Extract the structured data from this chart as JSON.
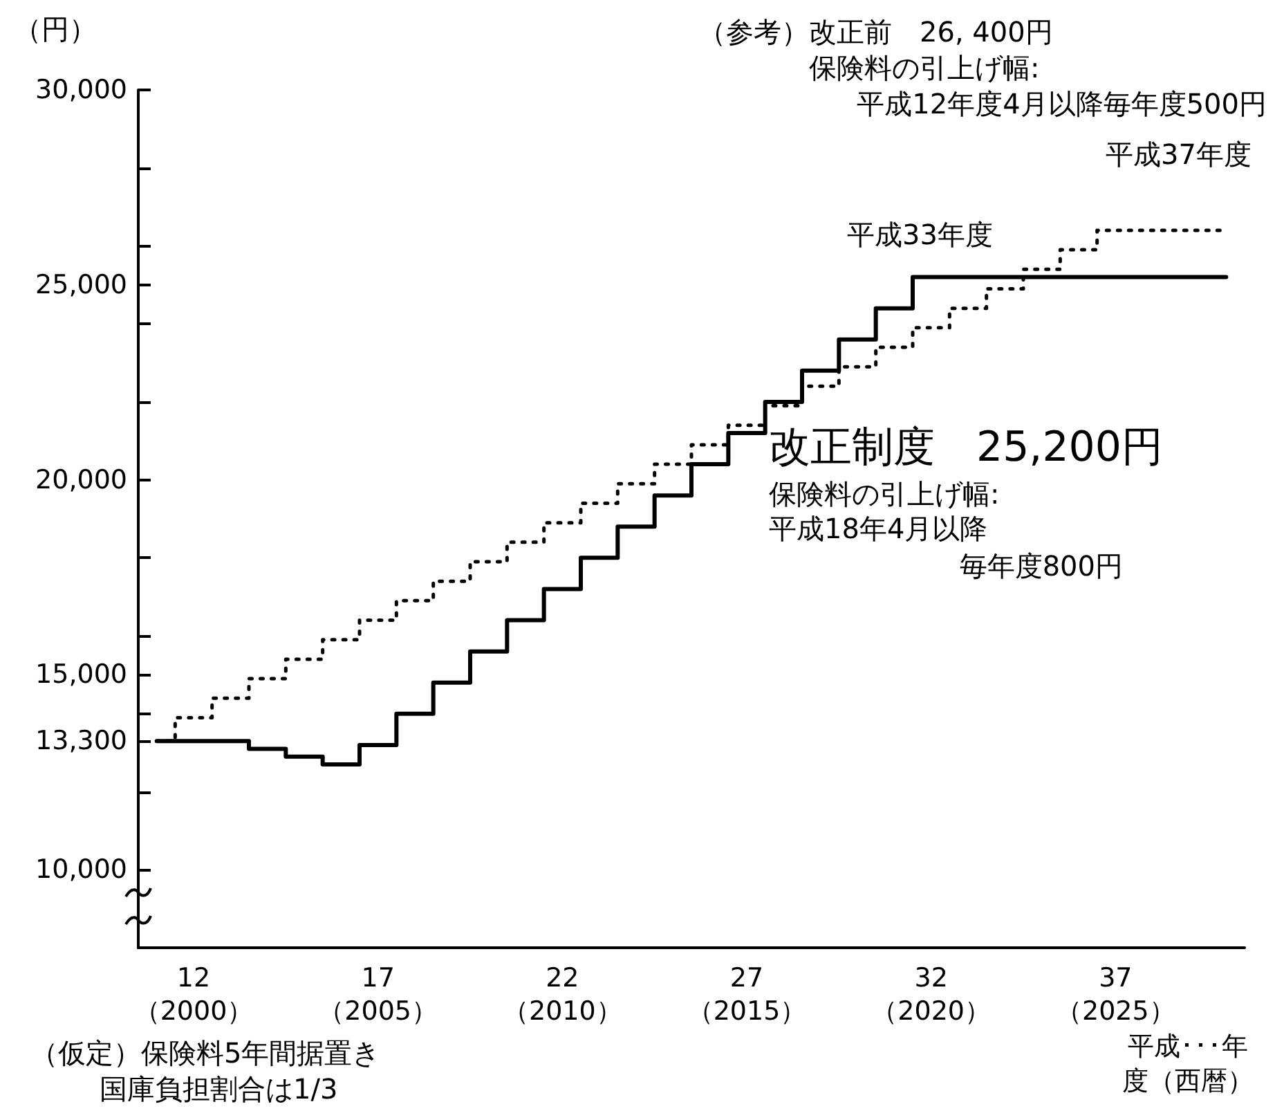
{
  "chart_data": {
    "type": "step",
    "ylabel": "（円）",
    "xlabel": "平成･･･年度（西暦）",
    "categories": [
      null,
      "12\n（2000）",
      null,
      null,
      null,
      null,
      "17\n（2005）",
      null,
      null,
      null,
      null,
      "22\n（2010）",
      null,
      null,
      null,
      null,
      "27\n（2015）",
      null,
      null,
      null,
      null,
      "32\n（2020）",
      null,
      null,
      null,
      null,
      "37\n（2025）",
      null,
      null,
      null
    ],
    "ylim": [
      8000,
      30000
    ],
    "yticks": [
      {
        "value": 10000,
        "label": "10,000"
      },
      {
        "value": 12000,
        "label": null
      },
      {
        "value": 13300,
        "label": "13,300"
      },
      {
        "value": 14000,
        "label": null
      },
      {
        "value": 15000,
        "label": "15,000"
      },
      {
        "value": 16000,
        "label": null
      },
      {
        "value": 18000,
        "label": null
      },
      {
        "value": 20000,
        "label": "20,000"
      },
      {
        "value": 22000,
        "label": null
      },
      {
        "value": 24000,
        "label": null
      },
      {
        "value": 25000,
        "label": "25,000"
      },
      {
        "value": 26000,
        "label": null
      },
      {
        "value": 28000,
        "label": null
      },
      {
        "value": 30000,
        "label": "30,000"
      }
    ],
    "marker": "none",
    "series": [
      {
        "color": "#000000",
        "line_style": "solid",
        "values": [
          13300,
          13300,
          13300,
          13100,
          12900,
          12700,
          13200,
          14000,
          14800,
          15600,
          16400,
          17200,
          18000,
          18800,
          19600,
          20400,
          21200,
          22000,
          22800,
          23600,
          24400,
          25200,
          25200,
          25200,
          25200,
          25200,
          25200,
          25200,
          25200,
          25200
        ]
      },
      {
        "color": "#000000",
        "line_style": "dotted",
        "values": [
          13300,
          13900,
          14400,
          14900,
          15400,
          15900,
          16400,
          16900,
          17400,
          17900,
          18400,
          18900,
          19400,
          19900,
          20400,
          20900,
          21400,
          21900,
          22400,
          22900,
          23400,
          23900,
          24400,
          24900,
          25400,
          25900,
          26400,
          26400,
          26400,
          26400
        ]
      }
    ],
    "annotations": [
      "（参考）改正前　26, 400円",
      "保険料の引上げ幅:",
      "平成12年度4月以降毎年度500円",
      {
        "text": "平成37年度",
        "y": 26400
      },
      {
        "text": "平成33年度",
        "y": 25200
      },
      "改正制度　25,200円",
      "保険料の引上げ幅:",
      "平成18年4月以降",
      "毎年度800円",
      "（仮定）保険料5年間据置き",
      "国庫負担割合は1/3"
    ]
  }
}
